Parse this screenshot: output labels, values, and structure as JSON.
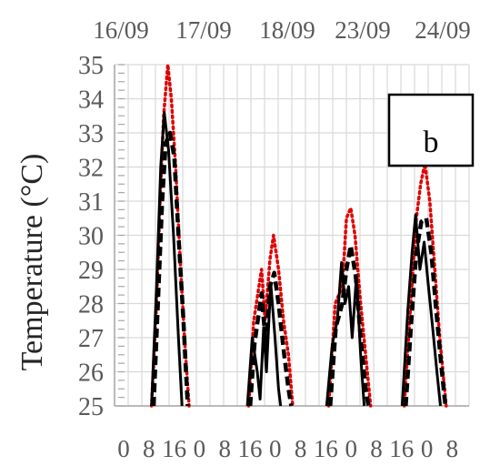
{
  "chart_data": {
    "type": "line",
    "ylabel": "Temperature (°C)",
    "ylim": [
      25,
      35
    ],
    "yticks": [
      25,
      26,
      27,
      28,
      29,
      30,
      31,
      32,
      33,
      34,
      35
    ],
    "grid": true,
    "panel_label": "b",
    "date_labels": [
      "16/09",
      "17/09",
      "18/09",
      "23/09",
      "24/09"
    ],
    "x_tick_labels": [
      "0",
      "8",
      "16",
      "0",
      "8",
      "16",
      "0",
      "8",
      "16",
      "0",
      "8",
      "16",
      "0",
      "8"
    ],
    "days": [
      {
        "date": "17/09",
        "dotted_red": [
          [
            6.5,
            25
          ],
          [
            7.2,
            28
          ],
          [
            7.7,
            31
          ],
          [
            8.2,
            33.5
          ],
          [
            8.8,
            35
          ],
          [
            9.3,
            34
          ],
          [
            9.9,
            32
          ],
          [
            10.6,
            29
          ],
          [
            11.3,
            26.5
          ],
          [
            11.8,
            25
          ]
        ],
        "dashed_black": [
          [
            6.8,
            25
          ],
          [
            7.4,
            28
          ],
          [
            8.0,
            31
          ],
          [
            8.5,
            32.7
          ],
          [
            9.1,
            33
          ],
          [
            9.7,
            32.3
          ],
          [
            10.3,
            30
          ],
          [
            11.0,
            27.5
          ],
          [
            11.6,
            25
          ]
        ],
        "solid_black": [
          [
            6.5,
            25
          ],
          [
            7.2,
            28.5
          ],
          [
            7.8,
            32
          ],
          [
            8.3,
            33.6
          ],
          [
            8.9,
            32.5
          ],
          [
            9.6,
            30
          ],
          [
            10.3,
            27
          ],
          [
            10.8,
            25
          ]
        ]
      },
      {
        "date": "18/09",
        "dotted_red": [
          [
            8.8,
            25
          ],
          [
            9.5,
            27.5
          ],
          [
            10.6,
            29
          ],
          [
            11.1,
            27.5
          ],
          [
            11.8,
            29.3
          ],
          [
            12.3,
            30
          ],
          [
            13.0,
            29
          ],
          [
            13.7,
            27.5
          ],
          [
            14.4,
            26.5
          ],
          [
            15.0,
            25
          ]
        ],
        "dashed_black": [
          [
            9.0,
            25
          ],
          [
            9.6,
            26.8
          ],
          [
            10.6,
            28.3
          ],
          [
            11.2,
            26.8
          ],
          [
            11.8,
            28.5
          ],
          [
            12.4,
            28.9
          ],
          [
            13.0,
            28
          ],
          [
            13.8,
            26.5
          ],
          [
            14.4,
            25.5
          ],
          [
            14.8,
            25
          ]
        ],
        "solid_black": [
          [
            8.6,
            25
          ],
          [
            9.3,
            27
          ],
          [
            10.0,
            26
          ],
          [
            10.4,
            25.2
          ],
          [
            10.9,
            27.3
          ],
          [
            11.3,
            26
          ],
          [
            11.9,
            28.6
          ],
          [
            12.5,
            27
          ],
          [
            13.0,
            25.5
          ],
          [
            13.3,
            25
          ]
        ]
      },
      {
        "date": "23/09",
        "dotted_red": [
          [
            8.8,
            25
          ],
          [
            9.7,
            28
          ],
          [
            10.7,
            28.5
          ],
          [
            11.3,
            30.5
          ],
          [
            11.9,
            30.8
          ],
          [
            12.5,
            30
          ],
          [
            13.3,
            28
          ],
          [
            14.0,
            26.5
          ],
          [
            14.7,
            25
          ]
        ],
        "dashed_black": [
          [
            9.0,
            25
          ],
          [
            9.8,
            27.3
          ],
          [
            10.7,
            28
          ],
          [
            11.3,
            29
          ],
          [
            11.9,
            29.7
          ],
          [
            12.6,
            28.8
          ],
          [
            13.3,
            27
          ],
          [
            14.0,
            25.5
          ],
          [
            14.4,
            25
          ]
        ],
        "solid_black": [
          [
            8.5,
            25
          ],
          [
            9.3,
            26.8
          ],
          [
            10.0,
            27.5
          ],
          [
            10.6,
            29.2
          ],
          [
            11.1,
            28
          ],
          [
            11.6,
            28.5
          ],
          [
            12.1,
            27
          ],
          [
            12.7,
            28.8
          ],
          [
            13.3,
            26.5
          ],
          [
            13.8,
            25
          ]
        ]
      },
      {
        "date": "24/09",
        "dotted_red": [
          [
            8.3,
            25
          ],
          [
            9.2,
            28
          ],
          [
            10.0,
            30.5
          ],
          [
            10.6,
            31.5
          ],
          [
            11.2,
            32.1
          ],
          [
            11.9,
            31
          ],
          [
            12.6,
            29
          ],
          [
            13.3,
            27
          ],
          [
            14.2,
            25
          ]
        ],
        "dashed_black": [
          [
            8.5,
            25
          ],
          [
            9.3,
            27.5
          ],
          [
            10.0,
            29.5
          ],
          [
            10.7,
            30.4
          ],
          [
            11.4,
            30.5
          ],
          [
            12.1,
            29.5
          ],
          [
            12.8,
            27.8
          ],
          [
            13.5,
            26.2
          ],
          [
            14.1,
            25
          ]
        ],
        "solid_black": [
          [
            8.0,
            25
          ],
          [
            8.8,
            27.8
          ],
          [
            9.4,
            29.5
          ],
          [
            9.9,
            30.6
          ],
          [
            10.5,
            29
          ],
          [
            11.1,
            29.8
          ],
          [
            11.7,
            28.5
          ],
          [
            12.3,
            27.3
          ],
          [
            12.9,
            26
          ],
          [
            13.4,
            25
          ]
        ]
      }
    ]
  }
}
